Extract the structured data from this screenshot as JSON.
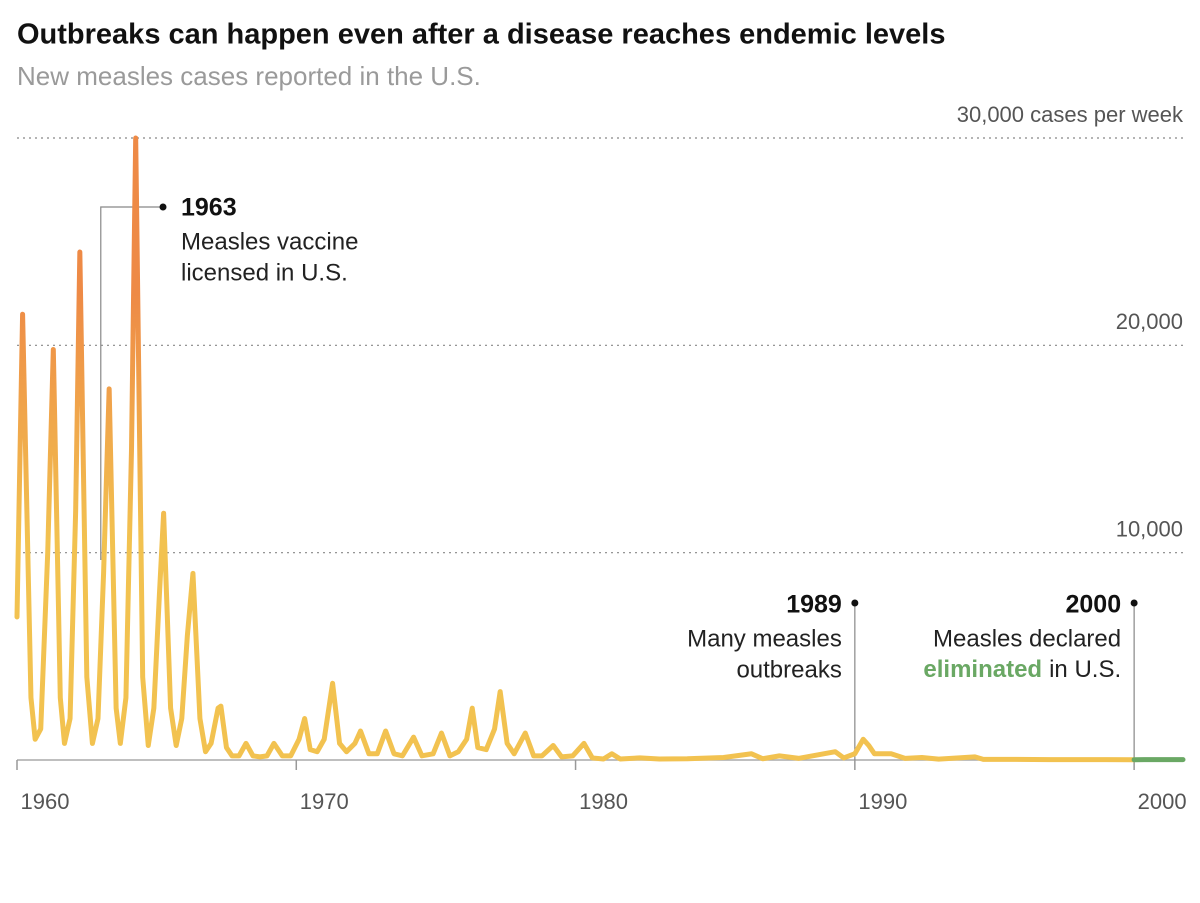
{
  "chart_data": {
    "type": "line",
    "title": "Outbreaks can happen even after a disease reaches endemic levels",
    "subtitle": "New measles cases reported in the U.S.",
    "xlim": [
      1960,
      2001.75
    ],
    "xticks": [
      1960,
      1970,
      1980,
      1990,
      2000
    ],
    "ylim": [
      0,
      30000
    ],
    "yticks": [
      {
        "value": 10000,
        "label": "10,000"
      },
      {
        "value": 20000,
        "label": "20,000"
      },
      {
        "value": 30000,
        "label": "30,000 cases per week"
      }
    ],
    "grid": true,
    "series": [
      {
        "color": "#f2c250",
        "peak_color": "#ee8a46",
        "x": [
          1960.0,
          1960.2,
          1960.5,
          1960.65,
          1960.85,
          1961.1,
          1961.3,
          1961.55,
          1961.7,
          1961.9,
          1962.1,
          1962.25,
          1962.5,
          1962.7,
          1962.9,
          1963.1,
          1963.3,
          1963.55,
          1963.7,
          1963.9,
          1964.1,
          1964.25,
          1964.5,
          1964.7,
          1964.9,
          1965.1,
          1965.25,
          1965.5,
          1965.7,
          1965.9,
          1966.1,
          1966.3,
          1966.55,
          1966.75,
          1966.95,
          1967.2,
          1967.3,
          1967.5,
          1967.7,
          1967.95,
          1968.2,
          1968.45,
          1968.7,
          1968.95,
          1969.2,
          1969.5,
          1969.8,
          1970.1,
          1970.3,
          1970.5,
          1970.75,
          1971.0,
          1971.3,
          1971.55,
          1971.8,
          1972.1,
          1972.3,
          1972.6,
          1972.9,
          1973.2,
          1973.5,
          1973.8,
          1974.2,
          1974.5,
          1974.9,
          1975.2,
          1975.5,
          1975.8,
          1976.1,
          1976.3,
          1976.5,
          1976.8,
          1977.1,
          1977.3,
          1977.55,
          1977.8,
          1978.2,
          1978.5,
          1978.8,
          1979.2,
          1979.5,
          1979.9,
          1980.3,
          1980.6,
          1981.0,
          1981.3,
          1981.6,
          1982.3,
          1983.0,
          1984.0,
          1985.3,
          1986.3,
          1986.7,
          1987.3,
          1988.0,
          1989.3,
          1989.6,
          1990.0,
          1990.3,
          1990.5,
          1990.7,
          1991.3,
          1991.8,
          1992.4,
          1993.0,
          1994.3,
          1994.6,
          1995.5,
          1997.0,
          1999.0,
          2000.0
        ],
        "values": [
          6900,
          21500,
          3000,
          1000,
          1500,
          10000,
          19800,
          3000,
          800,
          2000,
          12000,
          24500,
          4000,
          800,
          2000,
          9000,
          17900,
          2500,
          800,
          3000,
          15000,
          30000,
          4000,
          700,
          2500,
          8000,
          11900,
          2500,
          700,
          2000,
          6000,
          9000,
          2000,
          400,
          800,
          2500,
          2600,
          600,
          200,
          200,
          800,
          200,
          150,
          200,
          800,
          200,
          200,
          1000,
          2000,
          500,
          400,
          1000,
          3700,
          800,
          400,
          800,
          1400,
          300,
          300,
          1400,
          300,
          200,
          1100,
          200,
          300,
          1300,
          200,
          400,
          1000,
          2500,
          600,
          500,
          1500,
          3300,
          800,
          300,
          1300,
          200,
          200,
          700,
          150,
          200,
          800,
          100,
          50,
          300,
          50,
          100,
          50,
          60,
          120,
          300,
          60,
          200,
          80,
          400,
          100,
          300,
          1000,
          700,
          300,
          300,
          80,
          120,
          40,
          150,
          30,
          30,
          20,
          20,
          15
        ]
      },
      {
        "color": "#6aa864",
        "x": [
          2000.0,
          2001.75
        ],
        "values": [
          15,
          20
        ]
      }
    ],
    "annotations": [
      {
        "x": 1963,
        "label": "1963",
        "text": [
          "Measles vaccine",
          "licensed in U.S."
        ]
      },
      {
        "x": 1990,
        "label": "1989",
        "text": [
          "Many measles",
          "outbreaks"
        ]
      },
      {
        "x": 2000,
        "label": "2000",
        "text": [
          "Measles declared"
        ],
        "highlight": "eliminated",
        "text_end": "in U.S.",
        "highlight_color": "#6aa864"
      }
    ]
  }
}
